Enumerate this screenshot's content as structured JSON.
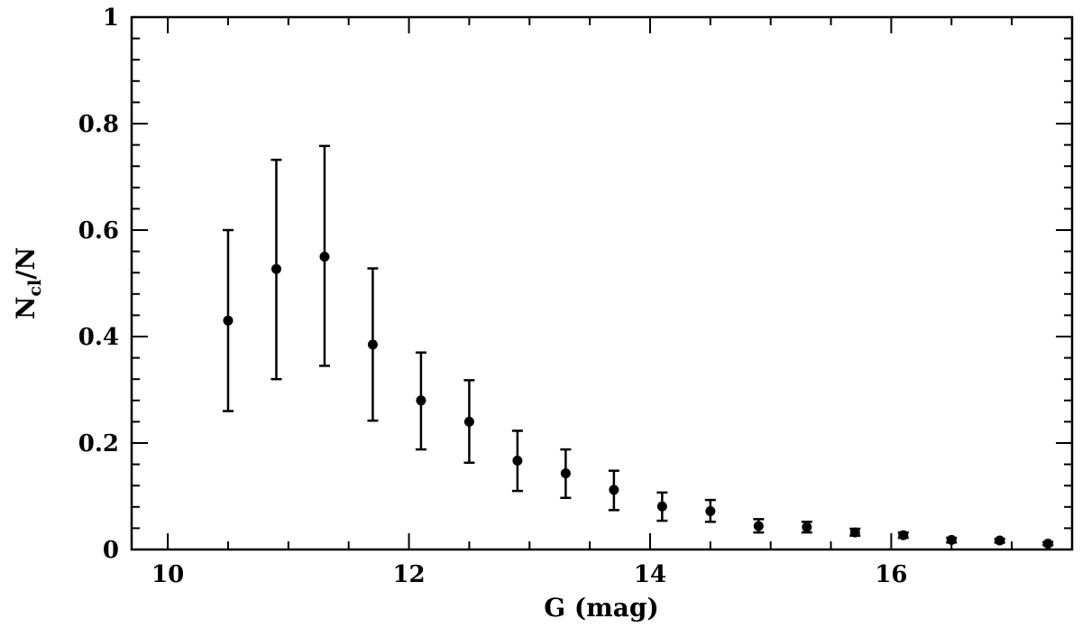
{
  "chart_data": {
    "type": "scatter",
    "xlabel": "G (mag)",
    "ylabel": {
      "main": "N",
      "sub": "cl",
      "rest": "/N"
    },
    "xlim": [
      9.7,
      17.5
    ],
    "ylim": [
      0,
      1
    ],
    "x_ticks": [
      10,
      12,
      14,
      16
    ],
    "x_tick_labels": [
      "10",
      "12",
      "14",
      "16"
    ],
    "y_ticks": [
      0,
      0.2,
      0.4,
      0.6,
      0.8,
      1
    ],
    "y_tick_labels": [
      "0",
      "0.2",
      "0.4",
      "0.6",
      "0.8",
      "1"
    ],
    "grid": false,
    "points": [
      {
        "x": 10.5,
        "y": 0.43,
        "err_low": 0.26,
        "err_high": 0.6
      },
      {
        "x": 10.9,
        "y": 0.527,
        "err_low": 0.32,
        "err_high": 0.732
      },
      {
        "x": 11.3,
        "y": 0.55,
        "err_low": 0.345,
        "err_high": 0.758
      },
      {
        "x": 11.7,
        "y": 0.385,
        "err_low": 0.242,
        "err_high": 0.528
      },
      {
        "x": 12.1,
        "y": 0.28,
        "err_low": 0.188,
        "err_high": 0.37
      },
      {
        "x": 12.5,
        "y": 0.24,
        "err_low": 0.163,
        "err_high": 0.318
      },
      {
        "x": 12.9,
        "y": 0.167,
        "err_low": 0.11,
        "err_high": 0.223
      },
      {
        "x": 13.3,
        "y": 0.143,
        "err_low": 0.097,
        "err_high": 0.188
      },
      {
        "x": 13.7,
        "y": 0.112,
        "err_low": 0.074,
        "err_high": 0.148
      },
      {
        "x": 14.1,
        "y": 0.081,
        "err_low": 0.054,
        "err_high": 0.107
      },
      {
        "x": 14.5,
        "y": 0.072,
        "err_low": 0.052,
        "err_high": 0.093
      },
      {
        "x": 14.9,
        "y": 0.044,
        "err_low": 0.032,
        "err_high": 0.057
      },
      {
        "x": 15.3,
        "y": 0.042,
        "err_low": 0.032,
        "err_high": 0.052
      },
      {
        "x": 15.7,
        "y": 0.032,
        "err_low": 0.026,
        "err_high": 0.039
      },
      {
        "x": 16.1,
        "y": 0.027,
        "err_low": 0.022,
        "err_high": 0.032
      },
      {
        "x": 16.5,
        "y": 0.018,
        "err_low": 0.013,
        "err_high": 0.022
      },
      {
        "x": 16.9,
        "y": 0.017,
        "err_low": 0.013,
        "err_high": 0.02
      },
      {
        "x": 17.3,
        "y": 0.011,
        "err_low": 0.008,
        "err_high": 0.014
      }
    ]
  }
}
